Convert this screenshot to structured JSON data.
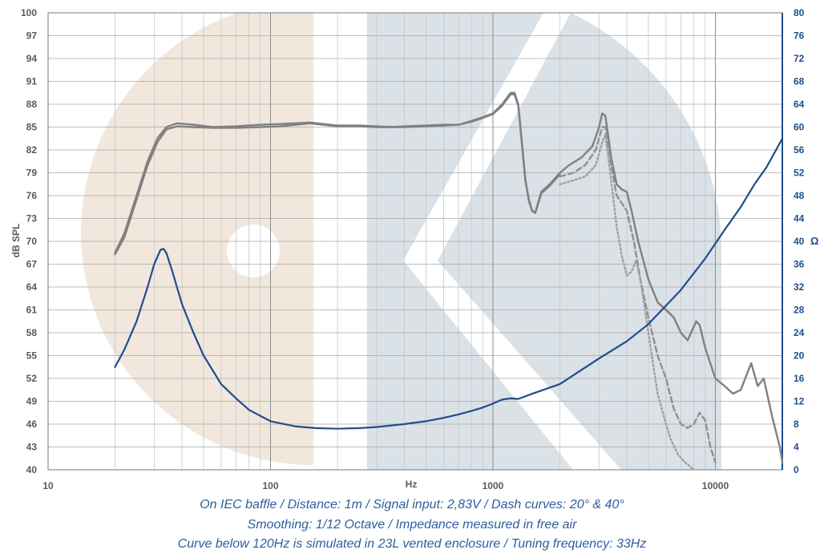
{
  "chart_data": {
    "type": "line",
    "x_scale": "log",
    "xlabel": "Hz",
    "ylabel": "dB SPL",
    "y2label": "Ω",
    "xlim": [
      10,
      20000
    ],
    "ylim": [
      40,
      100
    ],
    "y2lim": [
      0,
      80
    ],
    "grid": true,
    "x_tick_labels": [
      {
        "value": 10,
        "label": "10"
      },
      {
        "value": 100,
        "label": "100"
      },
      {
        "value": 1000,
        "label": "1000"
      },
      {
        "value": 10000,
        "label": "10000"
      }
    ],
    "y_ticks": [
      40,
      43,
      46,
      49,
      52,
      55,
      58,
      61,
      64,
      67,
      70,
      73,
      76,
      79,
      82,
      85,
      88,
      91,
      94,
      97,
      100
    ],
    "y2_ticks": [
      0,
      4,
      8,
      12,
      16,
      20,
      24,
      28,
      32,
      36,
      40,
      44,
      48,
      52,
      56,
      60,
      64,
      68,
      72,
      76,
      80
    ],
    "series": [
      {
        "style": "solid",
        "color": "#808080",
        "axis": "left",
        "points": [
          [
            20,
            68.5
          ],
          [
            22,
            71
          ],
          [
            25,
            76
          ],
          [
            28,
            80.5
          ],
          [
            31,
            83.5
          ],
          [
            34,
            85
          ],
          [
            38,
            85.5
          ],
          [
            45,
            85.3
          ],
          [
            55,
            85
          ],
          [
            70,
            85.1
          ],
          [
            90,
            85.3
          ],
          [
            110,
            85.4
          ],
          [
            150,
            85.6
          ],
          [
            200,
            85.2
          ],
          [
            250,
            85.2
          ],
          [
            300,
            85.1
          ],
          [
            350,
            85
          ],
          [
            400,
            85.1
          ],
          [
            500,
            85.2
          ],
          [
            600,
            85.3
          ],
          [
            700,
            85.3
          ],
          [
            800,
            85.8
          ],
          [
            900,
            86.3
          ],
          [
            1000,
            86.8
          ],
          [
            1100,
            88
          ],
          [
            1200,
            89.5
          ],
          [
            1250,
            89.5
          ],
          [
            1300,
            88
          ],
          [
            1350,
            83
          ],
          [
            1400,
            78
          ],
          [
            1450,
            75.5
          ],
          [
            1500,
            74
          ],
          [
            1550,
            73.8
          ],
          [
            1650,
            76.5
          ],
          [
            1800,
            77.5
          ],
          [
            2000,
            79
          ],
          [
            2200,
            80
          ],
          [
            2500,
            81
          ],
          [
            2800,
            82.5
          ],
          [
            3000,
            85
          ],
          [
            3100,
            86.8
          ],
          [
            3200,
            86.5
          ],
          [
            3400,
            81
          ],
          [
            3600,
            77.5
          ],
          [
            3800,
            76.8
          ],
          [
            4000,
            76.5
          ],
          [
            4200,
            74
          ],
          [
            4500,
            70
          ],
          [
            5000,
            65
          ],
          [
            5500,
            62
          ],
          [
            6000,
            61
          ],
          [
            6500,
            60
          ],
          [
            7000,
            58
          ],
          [
            7500,
            57
          ],
          [
            8200,
            59.5
          ],
          [
            8500,
            59
          ],
          [
            9000,
            56
          ],
          [
            10000,
            52
          ],
          [
            11000,
            51
          ],
          [
            12000,
            50
          ],
          [
            13000,
            50.5
          ],
          [
            14500,
            54
          ],
          [
            15500,
            51
          ],
          [
            16500,
            52
          ],
          [
            18000,
            47
          ],
          [
            19500,
            43
          ],
          [
            20000,
            41
          ]
        ]
      },
      {
        "style": "solid",
        "color": "#808080",
        "axis": "left",
        "points": [
          [
            20,
            68.3
          ],
          [
            22,
            70.5
          ],
          [
            25,
            75.5
          ],
          [
            28,
            80
          ],
          [
            31,
            83
          ],
          [
            34,
            84.7
          ],
          [
            38,
            85.1
          ],
          [
            45,
            85
          ],
          [
            55,
            84.9
          ],
          [
            70,
            84.9
          ],
          [
            90,
            85
          ],
          [
            110,
            85.1
          ],
          [
            150,
            85.5
          ],
          [
            200,
            85.1
          ],
          [
            250,
            85.1
          ],
          [
            300,
            85
          ],
          [
            350,
            85
          ],
          [
            400,
            85
          ],
          [
            500,
            85.1
          ],
          [
            600,
            85.2
          ],
          [
            700,
            85.3
          ],
          [
            800,
            85.7
          ],
          [
            900,
            86.2
          ],
          [
            1000,
            86.7
          ],
          [
            1100,
            87.8
          ],
          [
            1200,
            89.3
          ],
          [
            1250,
            89.3
          ],
          [
            1300,
            87.8
          ],
          [
            1350,
            82.8
          ],
          [
            1400,
            78
          ],
          [
            1450,
            75.3
          ],
          [
            1500,
            74
          ],
          [
            1550,
            73.7
          ],
          [
            1650,
            76.3
          ],
          [
            1800,
            77.3
          ],
          [
            2000,
            78.8
          ]
        ]
      },
      {
        "style": "dashed",
        "color": "#909090",
        "axis": "left",
        "points": [
          [
            2000,
            78.5
          ],
          [
            2300,
            79
          ],
          [
            2600,
            80
          ],
          [
            2900,
            82
          ],
          [
            3100,
            85
          ],
          [
            3200,
            85
          ],
          [
            3400,
            80
          ],
          [
            3600,
            76
          ],
          [
            3800,
            75
          ],
          [
            4000,
            74
          ],
          [
            4300,
            70
          ],
          [
            4600,
            65
          ],
          [
            5000,
            60
          ],
          [
            5500,
            55
          ],
          [
            6000,
            52
          ],
          [
            6500,
            48
          ],
          [
            7000,
            46
          ],
          [
            7500,
            45.5
          ],
          [
            8000,
            46
          ],
          [
            8500,
            47.5
          ],
          [
            9000,
            46.5
          ],
          [
            9500,
            43
          ],
          [
            10000,
            41
          ]
        ]
      },
      {
        "style": "dotted",
        "color": "#a0a0a0",
        "axis": "left",
        "points": [
          [
            2000,
            77.5
          ],
          [
            2300,
            78
          ],
          [
            2600,
            78.5
          ],
          [
            2900,
            80
          ],
          [
            3100,
            83
          ],
          [
            3200,
            84
          ],
          [
            3400,
            78
          ],
          [
            3600,
            72
          ],
          [
            3800,
            68
          ],
          [
            4000,
            65.5
          ],
          [
            4200,
            66
          ],
          [
            4400,
            67.5
          ],
          [
            4600,
            65
          ],
          [
            5000,
            58
          ],
          [
            5500,
            50
          ],
          [
            6000,
            46
          ],
          [
            6300,
            44
          ],
          [
            6800,
            42
          ],
          [
            7300,
            41
          ],
          [
            8000,
            40
          ]
        ]
      },
      {
        "style": "solid",
        "color": "#1f4e8c",
        "axis": "right",
        "points": [
          [
            20,
            18
          ],
          [
            22,
            21
          ],
          [
            25,
            26
          ],
          [
            28,
            32
          ],
          [
            30,
            36
          ],
          [
            32,
            38.5
          ],
          [
            33,
            38.7
          ],
          [
            34,
            38
          ],
          [
            36,
            35
          ],
          [
            40,
            29
          ],
          [
            45,
            24
          ],
          [
            50,
            20
          ],
          [
            60,
            15
          ],
          [
            70,
            12.5
          ],
          [
            80,
            10.5
          ],
          [
            100,
            8.5
          ],
          [
            130,
            7.6
          ],
          [
            160,
            7.3
          ],
          [
            200,
            7.2
          ],
          [
            250,
            7.3
          ],
          [
            300,
            7.5
          ],
          [
            400,
            8
          ],
          [
            500,
            8.5
          ],
          [
            600,
            9.1
          ],
          [
            700,
            9.7
          ],
          [
            800,
            10.3
          ],
          [
            900,
            10.9
          ],
          [
            1000,
            11.6
          ],
          [
            1100,
            12.3
          ],
          [
            1200,
            12.5
          ],
          [
            1300,
            12.4
          ],
          [
            1500,
            13.3
          ],
          [
            2000,
            15
          ],
          [
            3000,
            19.5
          ],
          [
            4000,
            22.5
          ],
          [
            5000,
            25.5
          ],
          [
            7000,
            31.5
          ],
          [
            9000,
            37
          ],
          [
            11000,
            42
          ],
          [
            13000,
            46
          ],
          [
            15000,
            50
          ],
          [
            17000,
            53
          ],
          [
            20000,
            58
          ]
        ]
      }
    ],
    "captions": [
      "On IEC baffle / Distance: 1m / Signal input: 2,83V / Dash curves: 20° & 40°",
      "Smoothing: 1/12 Octave / Impedance measured in free air",
      "Curve below 120Hz is simulated in 23L vented enclosure / Tuning frequency: 33Hz"
    ]
  }
}
